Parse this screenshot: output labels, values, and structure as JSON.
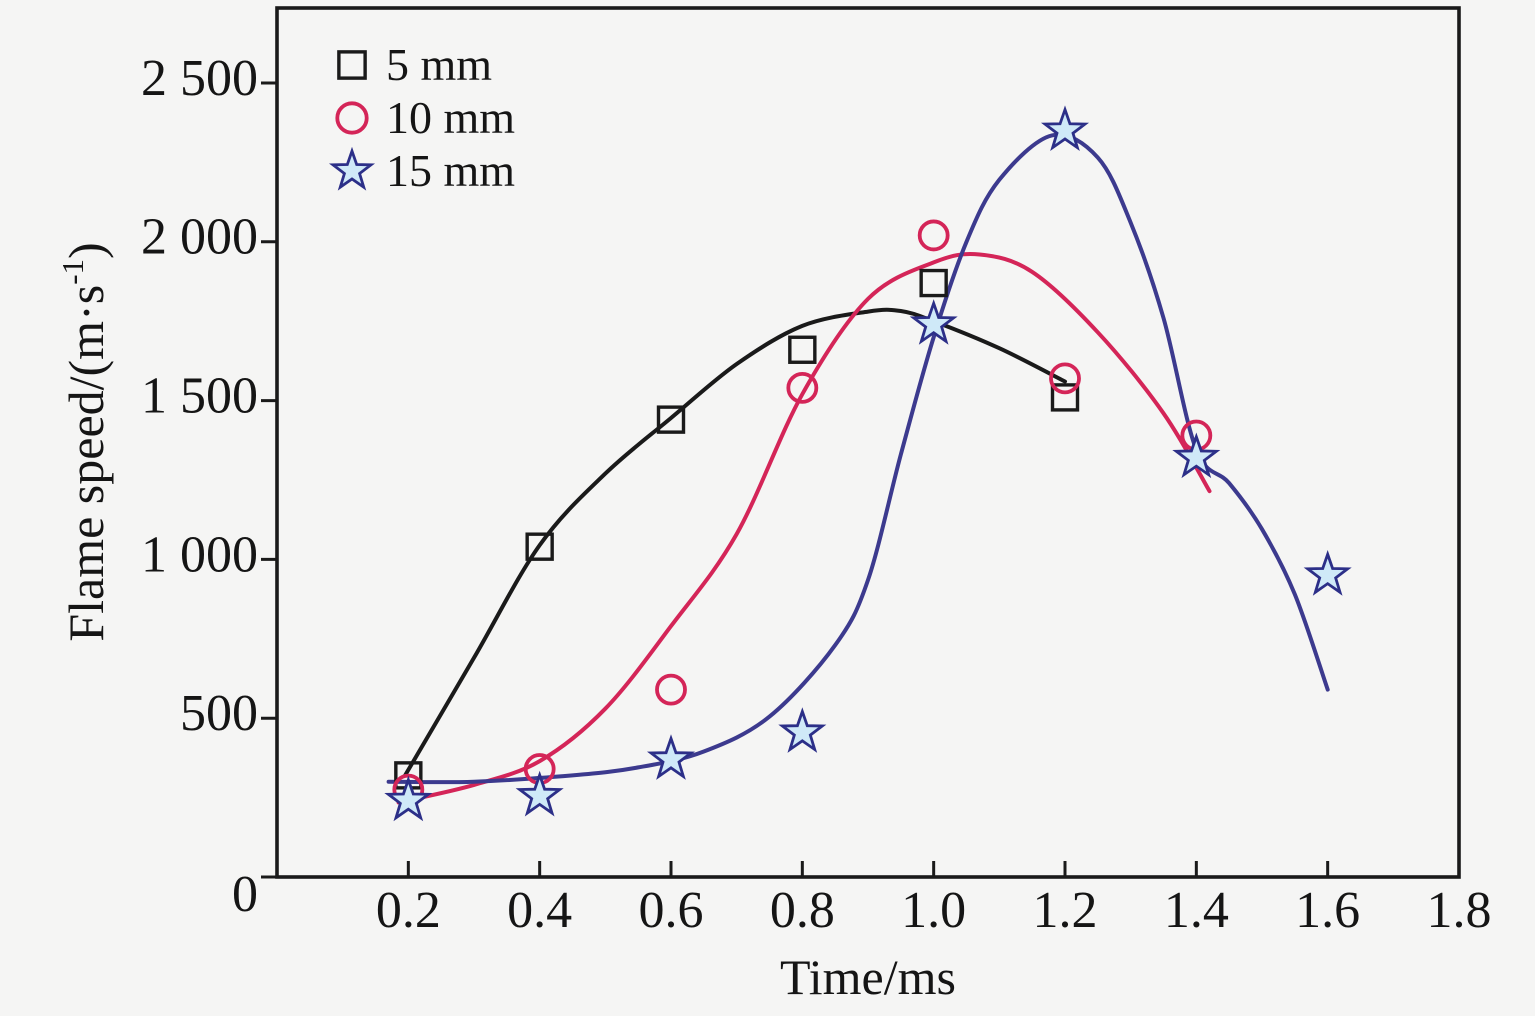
{
  "figure": {
    "background": "#f5f5f4",
    "frame_color": "#1a1a1a",
    "text_color": "#151515"
  },
  "axes": {
    "x": {
      "label": "Time/ms",
      "min": 0,
      "max": 1.8,
      "ticks": [
        "0.2",
        "0.4",
        "0.6",
        "0.8",
        "1.0",
        "1.2",
        "1.4",
        "1.6",
        "1.8"
      ]
    },
    "y": {
      "label_main": "Flame speed/(m·s",
      "label_sup": "-1",
      "label_close": ")",
      "min": 0,
      "max": 2736,
      "ticks": [
        {
          "value": 0,
          "label": "0"
        },
        {
          "value": 500,
          "label": "500"
        },
        {
          "value": 1000,
          "label": "1 000"
        },
        {
          "value": 1500,
          "label": "1 500"
        },
        {
          "value": 2000,
          "label": "2 000"
        },
        {
          "value": 2500,
          "label": "2 500"
        }
      ]
    }
  },
  "chart_data": {
    "type": "scatter",
    "title": "",
    "xlabel": "Time/ms",
    "ylabel": "Flame speed/(m·s⁻¹)",
    "xlim": [
      0,
      1.8
    ],
    "ylim": [
      0,
      2736
    ],
    "grid": false,
    "legend_position": "top-left",
    "series": [
      {
        "name": "5 mm",
        "marker": "square",
        "color": "#1a1a1a",
        "marker_stroke": "#1a1a1a",
        "marker_fill": "none",
        "points": [
          [
            0.2,
            320
          ],
          [
            0.4,
            1040
          ],
          [
            0.6,
            1440
          ],
          [
            0.8,
            1660
          ],
          [
            1.0,
            1870
          ],
          [
            1.2,
            1510
          ]
        ],
        "fit_curve": [
          [
            0.195,
            320
          ],
          [
            0.3,
            690
          ],
          [
            0.4,
            1045
          ],
          [
            0.5,
            1270
          ],
          [
            0.6,
            1445
          ],
          [
            0.7,
            1615
          ],
          [
            0.8,
            1735
          ],
          [
            0.9,
            1780
          ],
          [
            0.95,
            1782
          ],
          [
            1.0,
            1750
          ],
          [
            1.1,
            1665
          ],
          [
            1.2,
            1560
          ]
        ]
      },
      {
        "name": "10 mm",
        "marker": "circle",
        "color": "#d42558",
        "marker_stroke": "#d42558",
        "marker_fill": "none",
        "points": [
          [
            0.2,
            275
          ],
          [
            0.4,
            340
          ],
          [
            0.6,
            590
          ],
          [
            0.8,
            1540
          ],
          [
            1.0,
            2020
          ],
          [
            1.2,
            1570
          ],
          [
            1.4,
            1390
          ]
        ],
        "fit_curve": [
          [
            0.185,
            235
          ],
          [
            0.3,
            290
          ],
          [
            0.4,
            365
          ],
          [
            0.5,
            530
          ],
          [
            0.6,
            790
          ],
          [
            0.7,
            1080
          ],
          [
            0.8,
            1520
          ],
          [
            0.9,
            1820
          ],
          [
            1.0,
            1935
          ],
          [
            1.07,
            1960
          ],
          [
            1.15,
            1905
          ],
          [
            1.25,
            1715
          ],
          [
            1.35,
            1460
          ],
          [
            1.42,
            1215
          ]
        ]
      },
      {
        "name": "15 mm",
        "marker": "star",
        "color": "#3c3a8e",
        "marker_stroke": "#2c2f88",
        "marker_fill": "#cfe9f8",
        "points": [
          [
            0.2,
            240
          ],
          [
            0.4,
            255
          ],
          [
            0.6,
            370
          ],
          [
            0.8,
            455
          ],
          [
            1.0,
            1740
          ],
          [
            1.2,
            2350
          ],
          [
            1.4,
            1320
          ],
          [
            1.6,
            950
          ]
        ],
        "fit_curve": [
          [
            0.17,
            300
          ],
          [
            0.3,
            300
          ],
          [
            0.45,
            320
          ],
          [
            0.55,
            345
          ],
          [
            0.65,
            395
          ],
          [
            0.75,
            505
          ],
          [
            0.85,
            730
          ],
          [
            0.9,
            935
          ],
          [
            0.95,
            1330
          ],
          [
            1.0,
            1700
          ],
          [
            1.05,
            2000
          ],
          [
            1.1,
            2195
          ],
          [
            1.18,
            2335
          ],
          [
            1.25,
            2265
          ],
          [
            1.3,
            2060
          ],
          [
            1.35,
            1760
          ],
          [
            1.4,
            1345
          ],
          [
            1.45,
            1240
          ],
          [
            1.5,
            1095
          ],
          [
            1.55,
            890
          ],
          [
            1.6,
            590
          ]
        ]
      }
    ]
  }
}
